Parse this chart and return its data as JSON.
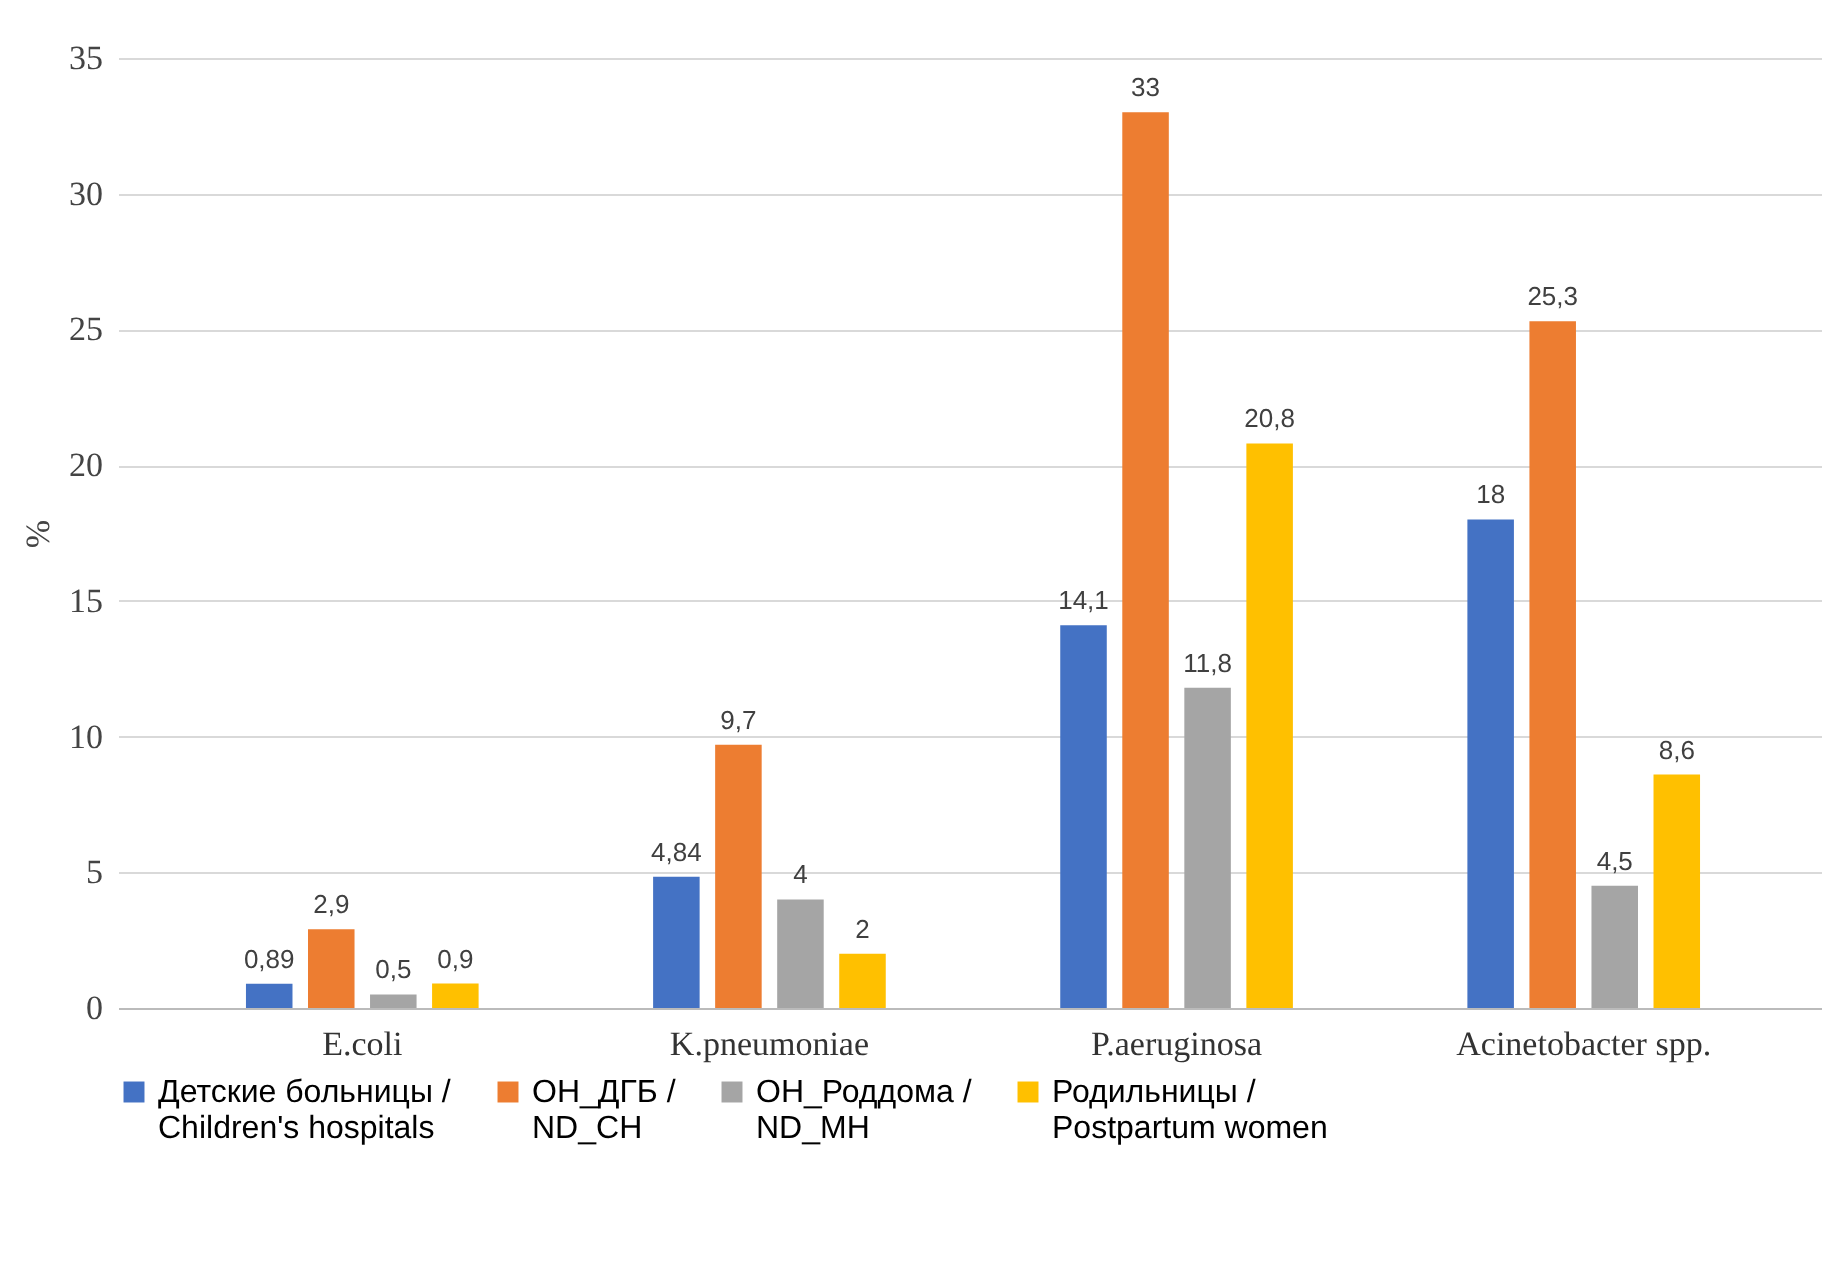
{
  "chart_data": {
    "type": "bar",
    "ylabel": "%",
    "categories": [
      "E.coli",
      "K.pneumoniae",
      "P.aeruginosa",
      "Acinetobacter spp."
    ],
    "series": [
      {
        "name": "Детские больницы / Children's hospitals",
        "color": "#4472c4",
        "values": [
          0.89,
          4.84,
          14.1,
          18
        ],
        "value_labels": [
          "0,89",
          "4,84",
          "14,1",
          "18"
        ]
      },
      {
        "name": "ОН_ДГБ / ND_CH",
        "color": "#ed7d31",
        "values": [
          2.9,
          9.7,
          33,
          25.3
        ],
        "value_labels": [
          "2,9",
          "9,7",
          "33",
          "25,3"
        ]
      },
      {
        "name": "ОН_Роддома / ND_MH",
        "color": "#a5a5a5",
        "values": [
          0.5,
          4,
          11.8,
          4.5
        ],
        "value_labels": [
          "0,5",
          "4",
          "11,8",
          "4,5"
        ]
      },
      {
        "name": "Родильницы / Postpartum women",
        "color": "#ffc000",
        "values": [
          0.9,
          2,
          20.8,
          8.6
        ],
        "value_labels": [
          "0,9",
          "2",
          "20,8",
          "8,6"
        ]
      }
    ],
    "ylim": [
      0,
      35
    ],
    "yticks": [
      0,
      5,
      10,
      15,
      20,
      25,
      30,
      35
    ],
    "grid": "y",
    "legend": "bottom"
  }
}
